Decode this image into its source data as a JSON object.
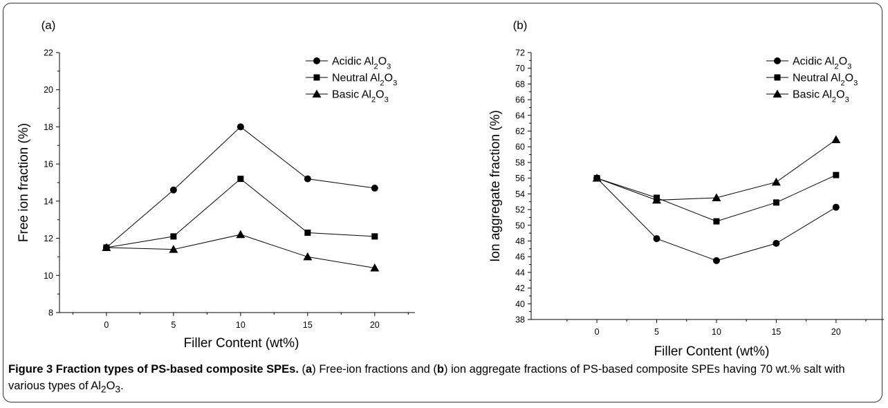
{
  "chart_data": [
    {
      "type": "line",
      "panel_label": "(a)",
      "xlabel": "Filler Content (wt%)",
      "ylabel": "Free ion fraction (%)",
      "x": [
        0,
        5,
        10,
        15,
        20
      ],
      "x_ticks": [
        "0",
        "5",
        "10",
        "15",
        "20"
      ],
      "xlim": [
        -3.5,
        23
      ],
      "ylim": [
        8,
        22
      ],
      "y_ticks": [
        "8",
        "10",
        "12",
        "14",
        "16",
        "18",
        "20",
        "22"
      ],
      "legend_position": "top-right",
      "series": [
        {
          "name": [
            "Acidic Al",
            "2",
            "O",
            "3"
          ],
          "marker": "circle",
          "values": [
            11.5,
            14.6,
            18.0,
            15.2,
            14.7
          ]
        },
        {
          "name": [
            "Neutral Al",
            "2",
            "O",
            "3"
          ],
          "marker": "square",
          "values": [
            11.5,
            12.1,
            15.2,
            12.3,
            12.1
          ]
        },
        {
          "name": [
            "Basic Al",
            "2",
            "O",
            "3"
          ],
          "marker": "triangle",
          "values": [
            11.5,
            11.4,
            12.2,
            11.0,
            10.4
          ]
        }
      ]
    },
    {
      "type": "line",
      "panel_label": "(b)",
      "xlabel": "Filler Content (wt%)",
      "ylabel": "Ion aggregate fraction (%)",
      "x": [
        0,
        5,
        10,
        15,
        20
      ],
      "x_ticks": [
        "0",
        "5",
        "10",
        "15",
        "20"
      ],
      "xlim": [
        -5.5,
        24
      ],
      "ylim": [
        38,
        72
      ],
      "y_ticks": [
        "38",
        "40",
        "42",
        "44",
        "46",
        "48",
        "50",
        "52",
        "54",
        "56",
        "58",
        "60",
        "62",
        "64",
        "66",
        "68",
        "70",
        "72"
      ],
      "legend_position": "top-right",
      "series": [
        {
          "name": [
            "Acidic Al",
            "2",
            "O",
            "3"
          ],
          "marker": "circle",
          "values": [
            56.0,
            48.3,
            45.5,
            47.7,
            52.3
          ]
        },
        {
          "name": [
            "Neutral Al",
            "2",
            "O",
            "3"
          ],
          "marker": "square",
          "values": [
            56.0,
            53.5,
            50.5,
            52.9,
            56.4
          ]
        },
        {
          "name": [
            "Basic Al",
            "2",
            "O",
            "3"
          ],
          "marker": "triangle",
          "values": [
            56.0,
            53.2,
            53.5,
            55.5,
            60.9
          ]
        }
      ]
    }
  ],
  "caption": {
    "title": "Figure 3 Fraction types of PS-based composite SPEs",
    "title_end": ".",
    "text": [
      " (",
      "a",
      ") Free-ion fractions and (",
      "b",
      ") ion aggregate fractions of PS-based composite SPEs having 70 wt.% salt with various types of Al",
      "2",
      "O",
      "3",
      "."
    ]
  },
  "colors": {
    "line": "#000000",
    "frame": "#333333",
    "background": "#ffffff"
  }
}
